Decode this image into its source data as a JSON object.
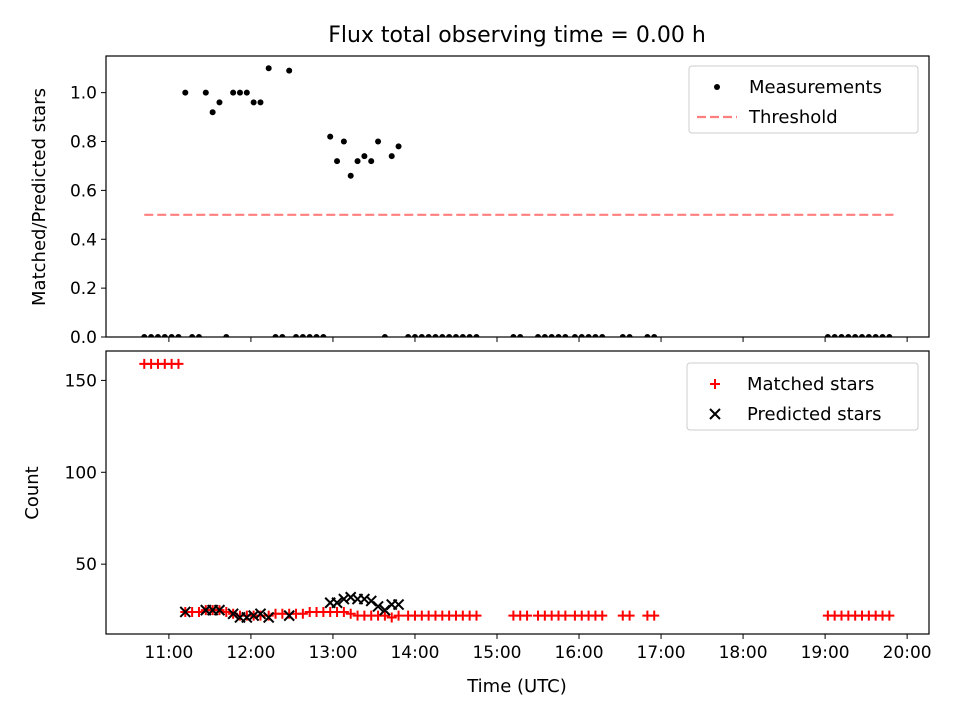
{
  "chart_data": [
    {
      "type": "scatter",
      "title": "Flux total observing time = 0.00 h",
      "xlabel": "",
      "ylabel": "Matched/Predicted stars",
      "xlim": [
        "10:14",
        "20:16"
      ],
      "ylim": [
        0,
        1.15
      ],
      "xticks": [
        "11:00",
        "12:00",
        "13:00",
        "14:00",
        "15:00",
        "16:00",
        "17:00",
        "18:00",
        "19:00",
        "20:00"
      ],
      "yticks": [
        0.0,
        0.2,
        0.4,
        0.6,
        0.8,
        1.0
      ],
      "ytick_labels": [
        "0.0",
        "0.2",
        "0.4",
        "0.6",
        "0.8",
        "1.0"
      ],
      "grid": false,
      "legend_position": "top-right",
      "series": [
        {
          "name": "Measurements",
          "marker": "dot",
          "color": "#000000",
          "points": [
            [
              "10:42",
              0
            ],
            [
              "10:47",
              0
            ],
            [
              "10:52",
              0
            ],
            [
              "10:57",
              0
            ],
            [
              "11:02",
              0
            ],
            [
              "11:07",
              0
            ],
            [
              "11:12",
              1.0
            ],
            [
              "11:17",
              0
            ],
            [
              "11:22",
              0
            ],
            [
              "11:27",
              1.0
            ],
            [
              "11:32",
              0.92
            ],
            [
              "11:37",
              0.96
            ],
            [
              "11:42",
              0
            ],
            [
              "11:47",
              1.0
            ],
            [
              "11:52",
              1.0
            ],
            [
              "11:57",
              1.0
            ],
            [
              "12:02",
              0.96
            ],
            [
              "12:07",
              0.96
            ],
            [
              "12:13",
              1.1
            ],
            [
              "12:18",
              0
            ],
            [
              "12:23",
              0
            ],
            [
              "12:28",
              1.09
            ],
            [
              "12:33",
              0
            ],
            [
              "12:38",
              0
            ],
            [
              "12:43",
              0
            ],
            [
              "12:48",
              0
            ],
            [
              "12:53",
              0
            ],
            [
              "12:58",
              0.82
            ],
            [
              "13:03",
              0.72
            ],
            [
              "13:08",
              0.8
            ],
            [
              "13:13",
              0.66
            ],
            [
              "13:18",
              0.72
            ],
            [
              "13:23",
              0.74
            ],
            [
              "13:28",
              0.72
            ],
            [
              "13:33",
              0.8
            ],
            [
              "13:38",
              0
            ],
            [
              "13:43",
              0.74
            ],
            [
              "13:48",
              0.78
            ],
            [
              "13:55",
              0
            ],
            [
              "14:00",
              0
            ],
            [
              "14:05",
              0
            ],
            [
              "14:10",
              0
            ],
            [
              "14:15",
              0
            ],
            [
              "14:20",
              0
            ],
            [
              "14:25",
              0
            ],
            [
              "14:30",
              0
            ],
            [
              "14:35",
              0
            ],
            [
              "14:40",
              0
            ],
            [
              "14:45",
              0
            ],
            [
              "15:12",
              0
            ],
            [
              "15:17",
              0
            ],
            [
              "15:30",
              0
            ],
            [
              "15:35",
              0
            ],
            [
              "15:40",
              0
            ],
            [
              "15:45",
              0
            ],
            [
              "15:50",
              0
            ],
            [
              "15:57",
              0
            ],
            [
              "16:02",
              0
            ],
            [
              "16:07",
              0
            ],
            [
              "16:12",
              0
            ],
            [
              "16:17",
              0
            ],
            [
              "16:32",
              0
            ],
            [
              "16:37",
              0
            ],
            [
              "16:50",
              0
            ],
            [
              "16:55",
              0
            ],
            [
              "19:02",
              0
            ],
            [
              "19:07",
              0
            ],
            [
              "19:12",
              0
            ],
            [
              "19:17",
              0
            ],
            [
              "19:22",
              0
            ],
            [
              "19:27",
              0
            ],
            [
              "19:32",
              0
            ],
            [
              "19:37",
              0
            ],
            [
              "19:42",
              0
            ],
            [
              "19:47",
              0
            ]
          ]
        },
        {
          "name": "Threshold",
          "marker": "dashed-line",
          "color": "#ff7f7f",
          "points": [
            [
              "10:42",
              0.5
            ],
            [
              "19:50",
              0.5
            ]
          ]
        }
      ]
    },
    {
      "type": "scatter",
      "title": "",
      "xlabel": "Time (UTC)",
      "ylabel": "Count",
      "xlim": [
        "10:14",
        "20:16"
      ],
      "ylim": [
        12,
        166
      ],
      "xticks": [
        "11:00",
        "12:00",
        "13:00",
        "14:00",
        "15:00",
        "16:00",
        "17:00",
        "18:00",
        "19:00",
        "20:00"
      ],
      "yticks": [
        50,
        100,
        150
      ],
      "ytick_labels": [
        "50",
        "100",
        "150"
      ],
      "grid": false,
      "legend_position": "top-right",
      "series": [
        {
          "name": "Matched stars",
          "marker": "plus",
          "color": "#ff0000",
          "points": [
            [
              "10:42",
              159
            ],
            [
              "10:47",
              159
            ],
            [
              "10:52",
              159
            ],
            [
              "10:57",
              159
            ],
            [
              "11:02",
              159
            ],
            [
              "11:07",
              159
            ],
            [
              "11:12",
              24
            ],
            [
              "11:17",
              24
            ],
            [
              "11:22",
              24
            ],
            [
              "11:27",
              25
            ],
            [
              "11:32",
              25
            ],
            [
              "11:37",
              25
            ],
            [
              "11:42",
              24
            ],
            [
              "11:47",
              23
            ],
            [
              "11:52",
              22
            ],
            [
              "11:57",
              22
            ],
            [
              "12:02",
              22
            ],
            [
              "12:07",
              22
            ],
            [
              "12:13",
              22
            ],
            [
              "12:18",
              23
            ],
            [
              "12:23",
              23
            ],
            [
              "12:28",
              23
            ],
            [
              "12:33",
              23
            ],
            [
              "12:38",
              23
            ],
            [
              "12:43",
              24
            ],
            [
              "12:48",
              24
            ],
            [
              "12:53",
              24
            ],
            [
              "12:58",
              24
            ],
            [
              "13:03",
              24
            ],
            [
              "13:08",
              24
            ],
            [
              "13:13",
              23
            ],
            [
              "13:18",
              22
            ],
            [
              "13:23",
              22
            ],
            [
              "13:28",
              22
            ],
            [
              "13:33",
              22
            ],
            [
              "13:38",
              22
            ],
            [
              "13:43",
              21
            ],
            [
              "13:48",
              22
            ],
            [
              "13:55",
              22
            ],
            [
              "14:00",
              22
            ],
            [
              "14:05",
              22
            ],
            [
              "14:10",
              22
            ],
            [
              "14:15",
              22
            ],
            [
              "14:20",
              22
            ],
            [
              "14:25",
              22
            ],
            [
              "14:30",
              22
            ],
            [
              "14:35",
              22
            ],
            [
              "14:40",
              22
            ],
            [
              "14:45",
              22
            ],
            [
              "15:12",
              22
            ],
            [
              "15:17",
              22
            ],
            [
              "15:22",
              22
            ],
            [
              "15:30",
              22
            ],
            [
              "15:35",
              22
            ],
            [
              "15:40",
              22
            ],
            [
              "15:45",
              22
            ],
            [
              "15:50",
              22
            ],
            [
              "15:57",
              22
            ],
            [
              "16:02",
              22
            ],
            [
              "16:07",
              22
            ],
            [
              "16:12",
              22
            ],
            [
              "16:17",
              22
            ],
            [
              "16:32",
              22
            ],
            [
              "16:37",
              22
            ],
            [
              "16:50",
              22
            ],
            [
              "16:55",
              22
            ],
            [
              "19:02",
              22
            ],
            [
              "19:07",
              22
            ],
            [
              "19:12",
              22
            ],
            [
              "19:17",
              22
            ],
            [
              "19:22",
              22
            ],
            [
              "19:27",
              22
            ],
            [
              "19:32",
              22
            ],
            [
              "19:37",
              22
            ],
            [
              "19:42",
              22
            ],
            [
              "19:47",
              22
            ]
          ]
        },
        {
          "name": "Predicted stars",
          "marker": "x",
          "color": "#000000",
          "points": [
            [
              "11:12",
              24
            ],
            [
              "11:27",
              25
            ],
            [
              "11:32",
              25
            ],
            [
              "11:37",
              25
            ],
            [
              "11:47",
              23
            ],
            [
              "11:52",
              21
            ],
            [
              "11:57",
              21
            ],
            [
              "12:02",
              22
            ],
            [
              "12:07",
              23
            ],
            [
              "12:13",
              21
            ],
            [
              "12:28",
              22
            ],
            [
              "12:58",
              29
            ],
            [
              "13:03",
              29
            ],
            [
              "13:08",
              31
            ],
            [
              "13:13",
              32
            ],
            [
              "13:18",
              31
            ],
            [
              "13:23",
              31
            ],
            [
              "13:28",
              30
            ],
            [
              "13:33",
              27
            ],
            [
              "13:38",
              25
            ],
            [
              "13:43",
              28
            ],
            [
              "13:48",
              28
            ]
          ]
        }
      ]
    }
  ]
}
